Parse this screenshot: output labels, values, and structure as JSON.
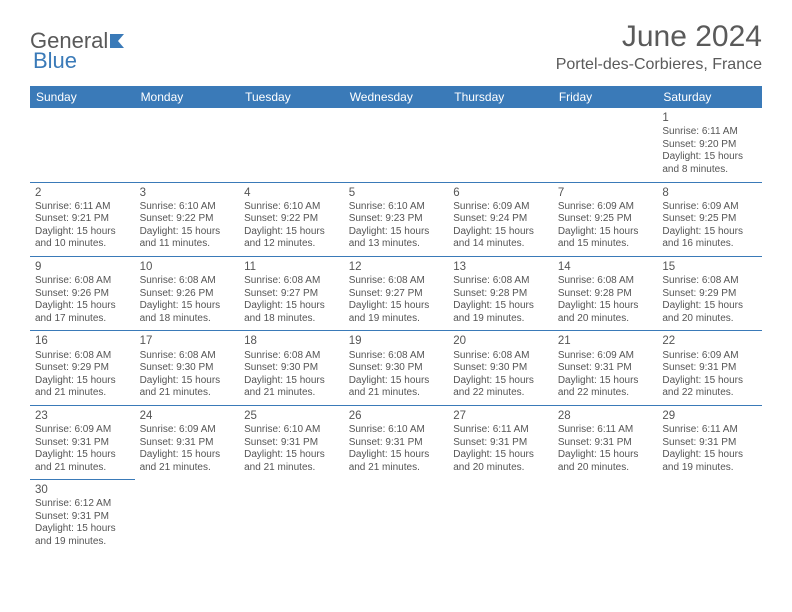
{
  "logo": {
    "part1": "General",
    "part2": "Blue"
  },
  "title": "June 2024",
  "subtitle": "Portel-des-Corbieres, France",
  "colors": {
    "header_bg": "#3a7ab8",
    "header_text": "#ffffff",
    "border": "#3a7ab8",
    "text": "#555555",
    "background": "#ffffff"
  },
  "day_headers": [
    "Sunday",
    "Monday",
    "Tuesday",
    "Wednesday",
    "Thursday",
    "Friday",
    "Saturday"
  ],
  "weeks": [
    [
      null,
      null,
      null,
      null,
      null,
      null,
      {
        "n": "1",
        "sr": "Sunrise: 6:11 AM",
        "ss": "Sunset: 9:20 PM",
        "d1": "Daylight: 15 hours",
        "d2": "and 8 minutes."
      }
    ],
    [
      {
        "n": "2",
        "sr": "Sunrise: 6:11 AM",
        "ss": "Sunset: 9:21 PM",
        "d1": "Daylight: 15 hours",
        "d2": "and 10 minutes."
      },
      {
        "n": "3",
        "sr": "Sunrise: 6:10 AM",
        "ss": "Sunset: 9:22 PM",
        "d1": "Daylight: 15 hours",
        "d2": "and 11 minutes."
      },
      {
        "n": "4",
        "sr": "Sunrise: 6:10 AM",
        "ss": "Sunset: 9:22 PM",
        "d1": "Daylight: 15 hours",
        "d2": "and 12 minutes."
      },
      {
        "n": "5",
        "sr": "Sunrise: 6:10 AM",
        "ss": "Sunset: 9:23 PM",
        "d1": "Daylight: 15 hours",
        "d2": "and 13 minutes."
      },
      {
        "n": "6",
        "sr": "Sunrise: 6:09 AM",
        "ss": "Sunset: 9:24 PM",
        "d1": "Daylight: 15 hours",
        "d2": "and 14 minutes."
      },
      {
        "n": "7",
        "sr": "Sunrise: 6:09 AM",
        "ss": "Sunset: 9:25 PM",
        "d1": "Daylight: 15 hours",
        "d2": "and 15 minutes."
      },
      {
        "n": "8",
        "sr": "Sunrise: 6:09 AM",
        "ss": "Sunset: 9:25 PM",
        "d1": "Daylight: 15 hours",
        "d2": "and 16 minutes."
      }
    ],
    [
      {
        "n": "9",
        "sr": "Sunrise: 6:08 AM",
        "ss": "Sunset: 9:26 PM",
        "d1": "Daylight: 15 hours",
        "d2": "and 17 minutes."
      },
      {
        "n": "10",
        "sr": "Sunrise: 6:08 AM",
        "ss": "Sunset: 9:26 PM",
        "d1": "Daylight: 15 hours",
        "d2": "and 18 minutes."
      },
      {
        "n": "11",
        "sr": "Sunrise: 6:08 AM",
        "ss": "Sunset: 9:27 PM",
        "d1": "Daylight: 15 hours",
        "d2": "and 18 minutes."
      },
      {
        "n": "12",
        "sr": "Sunrise: 6:08 AM",
        "ss": "Sunset: 9:27 PM",
        "d1": "Daylight: 15 hours",
        "d2": "and 19 minutes."
      },
      {
        "n": "13",
        "sr": "Sunrise: 6:08 AM",
        "ss": "Sunset: 9:28 PM",
        "d1": "Daylight: 15 hours",
        "d2": "and 19 minutes."
      },
      {
        "n": "14",
        "sr": "Sunrise: 6:08 AM",
        "ss": "Sunset: 9:28 PM",
        "d1": "Daylight: 15 hours",
        "d2": "and 20 minutes."
      },
      {
        "n": "15",
        "sr": "Sunrise: 6:08 AM",
        "ss": "Sunset: 9:29 PM",
        "d1": "Daylight: 15 hours",
        "d2": "and 20 minutes."
      }
    ],
    [
      {
        "n": "16",
        "sr": "Sunrise: 6:08 AM",
        "ss": "Sunset: 9:29 PM",
        "d1": "Daylight: 15 hours",
        "d2": "and 21 minutes."
      },
      {
        "n": "17",
        "sr": "Sunrise: 6:08 AM",
        "ss": "Sunset: 9:30 PM",
        "d1": "Daylight: 15 hours",
        "d2": "and 21 minutes."
      },
      {
        "n": "18",
        "sr": "Sunrise: 6:08 AM",
        "ss": "Sunset: 9:30 PM",
        "d1": "Daylight: 15 hours",
        "d2": "and 21 minutes."
      },
      {
        "n": "19",
        "sr": "Sunrise: 6:08 AM",
        "ss": "Sunset: 9:30 PM",
        "d1": "Daylight: 15 hours",
        "d2": "and 21 minutes."
      },
      {
        "n": "20",
        "sr": "Sunrise: 6:08 AM",
        "ss": "Sunset: 9:30 PM",
        "d1": "Daylight: 15 hours",
        "d2": "and 22 minutes."
      },
      {
        "n": "21",
        "sr": "Sunrise: 6:09 AM",
        "ss": "Sunset: 9:31 PM",
        "d1": "Daylight: 15 hours",
        "d2": "and 22 minutes."
      },
      {
        "n": "22",
        "sr": "Sunrise: 6:09 AM",
        "ss": "Sunset: 9:31 PM",
        "d1": "Daylight: 15 hours",
        "d2": "and 22 minutes."
      }
    ],
    [
      {
        "n": "23",
        "sr": "Sunrise: 6:09 AM",
        "ss": "Sunset: 9:31 PM",
        "d1": "Daylight: 15 hours",
        "d2": "and 21 minutes."
      },
      {
        "n": "24",
        "sr": "Sunrise: 6:09 AM",
        "ss": "Sunset: 9:31 PM",
        "d1": "Daylight: 15 hours",
        "d2": "and 21 minutes."
      },
      {
        "n": "25",
        "sr": "Sunrise: 6:10 AM",
        "ss": "Sunset: 9:31 PM",
        "d1": "Daylight: 15 hours",
        "d2": "and 21 minutes."
      },
      {
        "n": "26",
        "sr": "Sunrise: 6:10 AM",
        "ss": "Sunset: 9:31 PM",
        "d1": "Daylight: 15 hours",
        "d2": "and 21 minutes."
      },
      {
        "n": "27",
        "sr": "Sunrise: 6:11 AM",
        "ss": "Sunset: 9:31 PM",
        "d1": "Daylight: 15 hours",
        "d2": "and 20 minutes."
      },
      {
        "n": "28",
        "sr": "Sunrise: 6:11 AM",
        "ss": "Sunset: 9:31 PM",
        "d1": "Daylight: 15 hours",
        "d2": "and 20 minutes."
      },
      {
        "n": "29",
        "sr": "Sunrise: 6:11 AM",
        "ss": "Sunset: 9:31 PM",
        "d1": "Daylight: 15 hours",
        "d2": "and 19 minutes."
      }
    ],
    [
      {
        "n": "30",
        "sr": "Sunrise: 6:12 AM",
        "ss": "Sunset: 9:31 PM",
        "d1": "Daylight: 15 hours",
        "d2": "and 19 minutes."
      },
      null,
      null,
      null,
      null,
      null,
      null
    ]
  ]
}
